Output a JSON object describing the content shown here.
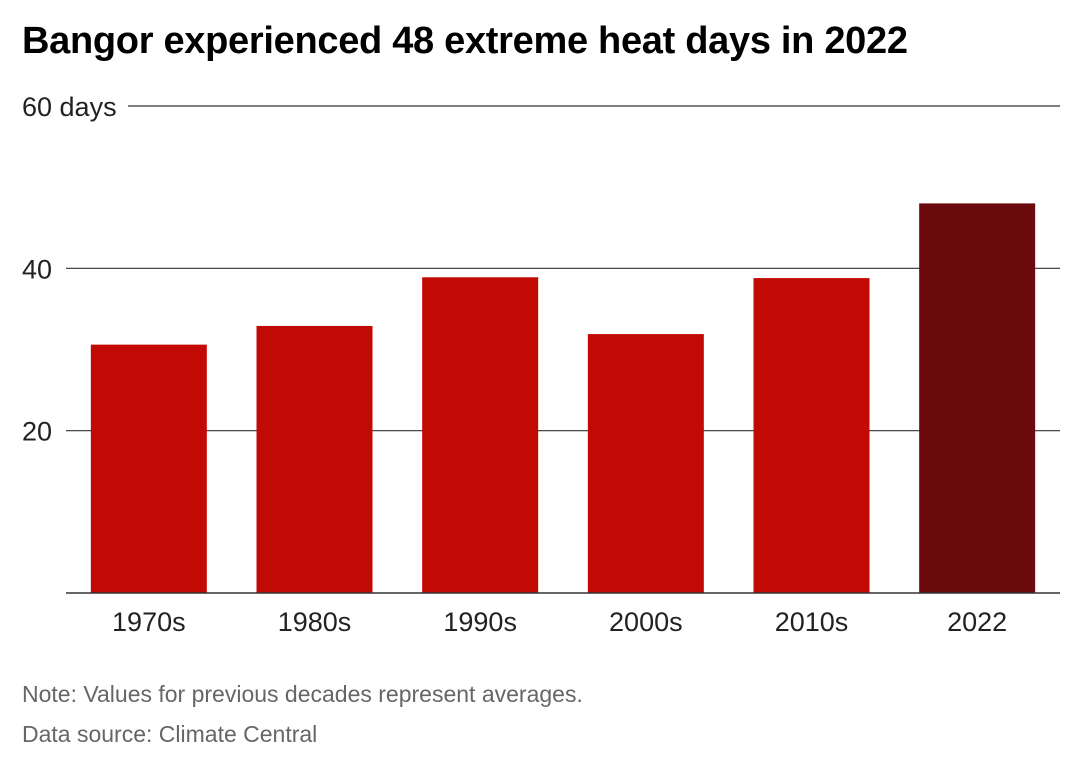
{
  "title": "Bangor experienced 48 extreme heat days in 2022",
  "note": "Note: Values for previous decades represent averages.",
  "source": "Data source: Climate Central",
  "chart_data": {
    "type": "bar",
    "categories": [
      "1970s",
      "1980s",
      "1990s",
      "2000s",
      "2010s",
      "2022"
    ],
    "values": [
      30.6,
      32.9,
      38.9,
      31.9,
      38.8,
      48
    ],
    "ylim": [
      0,
      60
    ],
    "yticks": [
      20,
      40,
      60
    ],
    "ytick_labels": [
      "20",
      "40",
      "60 days"
    ],
    "grid": true,
    "colors": {
      "bar": "#c20a05",
      "highlight": "#6a0a0c",
      "grid": "#333333"
    },
    "highlight_category": "2022"
  }
}
